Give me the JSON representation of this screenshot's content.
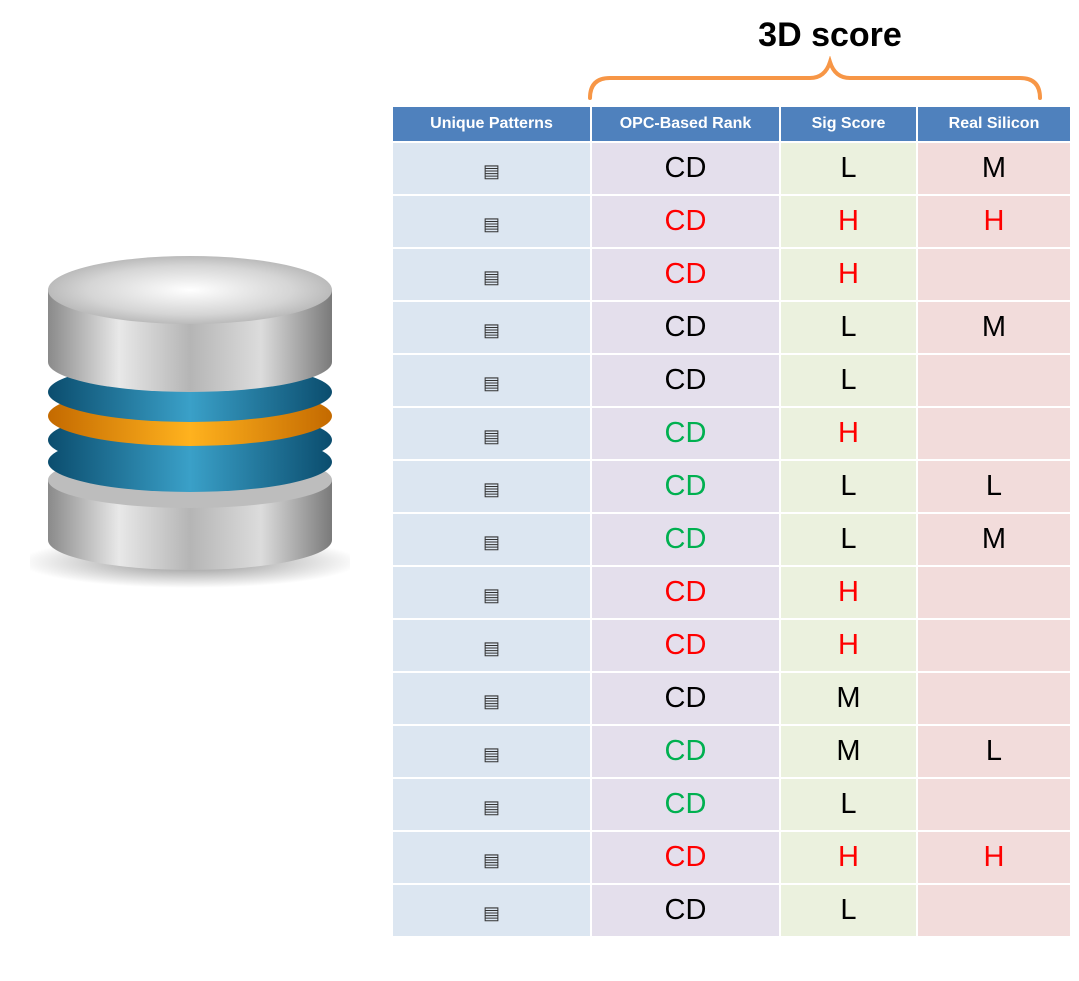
{
  "heading": "3D score",
  "icons": {
    "database": "database-icon",
    "pattern": "pattern-icon"
  },
  "colors": {
    "black": "#000000",
    "red": "#ff0000",
    "green": "#00b050",
    "header": "#4f81bd"
  },
  "columns": [
    "Unique Patterns",
    "OPC-Based Rank",
    "Sig Score",
    "Real Silicon"
  ],
  "rows": [
    {
      "opc": "CD",
      "opc_color": "black",
      "sig": "L",
      "sig_color": "black",
      "silicon": "M",
      "silicon_color": "black"
    },
    {
      "opc": "CD",
      "opc_color": "red",
      "sig": "H",
      "sig_color": "red",
      "silicon": "H",
      "silicon_color": "red"
    },
    {
      "opc": "CD",
      "opc_color": "red",
      "sig": "H",
      "sig_color": "red",
      "silicon": "",
      "silicon_color": "black"
    },
    {
      "opc": "CD",
      "opc_color": "black",
      "sig": "L",
      "sig_color": "black",
      "silicon": "M",
      "silicon_color": "black"
    },
    {
      "opc": "CD",
      "opc_color": "black",
      "sig": "L",
      "sig_color": "black",
      "silicon": "",
      "silicon_color": "black"
    },
    {
      "opc": "CD",
      "opc_color": "green",
      "sig": "H",
      "sig_color": "red",
      "silicon": "",
      "silicon_color": "black"
    },
    {
      "opc": "CD",
      "opc_color": "green",
      "sig": "L",
      "sig_color": "black",
      "silicon": "L",
      "silicon_color": "black"
    },
    {
      "opc": "CD",
      "opc_color": "green",
      "sig": "L",
      "sig_color": "black",
      "silicon": "M",
      "silicon_color": "black"
    },
    {
      "opc": "CD",
      "opc_color": "red",
      "sig": "H",
      "sig_color": "red",
      "silicon": "",
      "silicon_color": "black"
    },
    {
      "opc": "CD",
      "opc_color": "red",
      "sig": "H",
      "sig_color": "red",
      "silicon": "",
      "silicon_color": "black"
    },
    {
      "opc": "CD",
      "opc_color": "black",
      "sig": "M",
      "sig_color": "black",
      "silicon": "",
      "silicon_color": "black"
    },
    {
      "opc": "CD",
      "opc_color": "green",
      "sig": "M",
      "sig_color": "black",
      "silicon": "L",
      "silicon_color": "black"
    },
    {
      "opc": "CD",
      "opc_color": "green",
      "sig": "L",
      "sig_color": "black",
      "silicon": "",
      "silicon_color": "black"
    },
    {
      "opc": "CD",
      "opc_color": "red",
      "sig": "H",
      "sig_color": "red",
      "silicon": "H",
      "silicon_color": "red"
    },
    {
      "opc": "CD",
      "opc_color": "black",
      "sig": "L",
      "sig_color": "black",
      "silicon": "",
      "silicon_color": "black"
    }
  ]
}
